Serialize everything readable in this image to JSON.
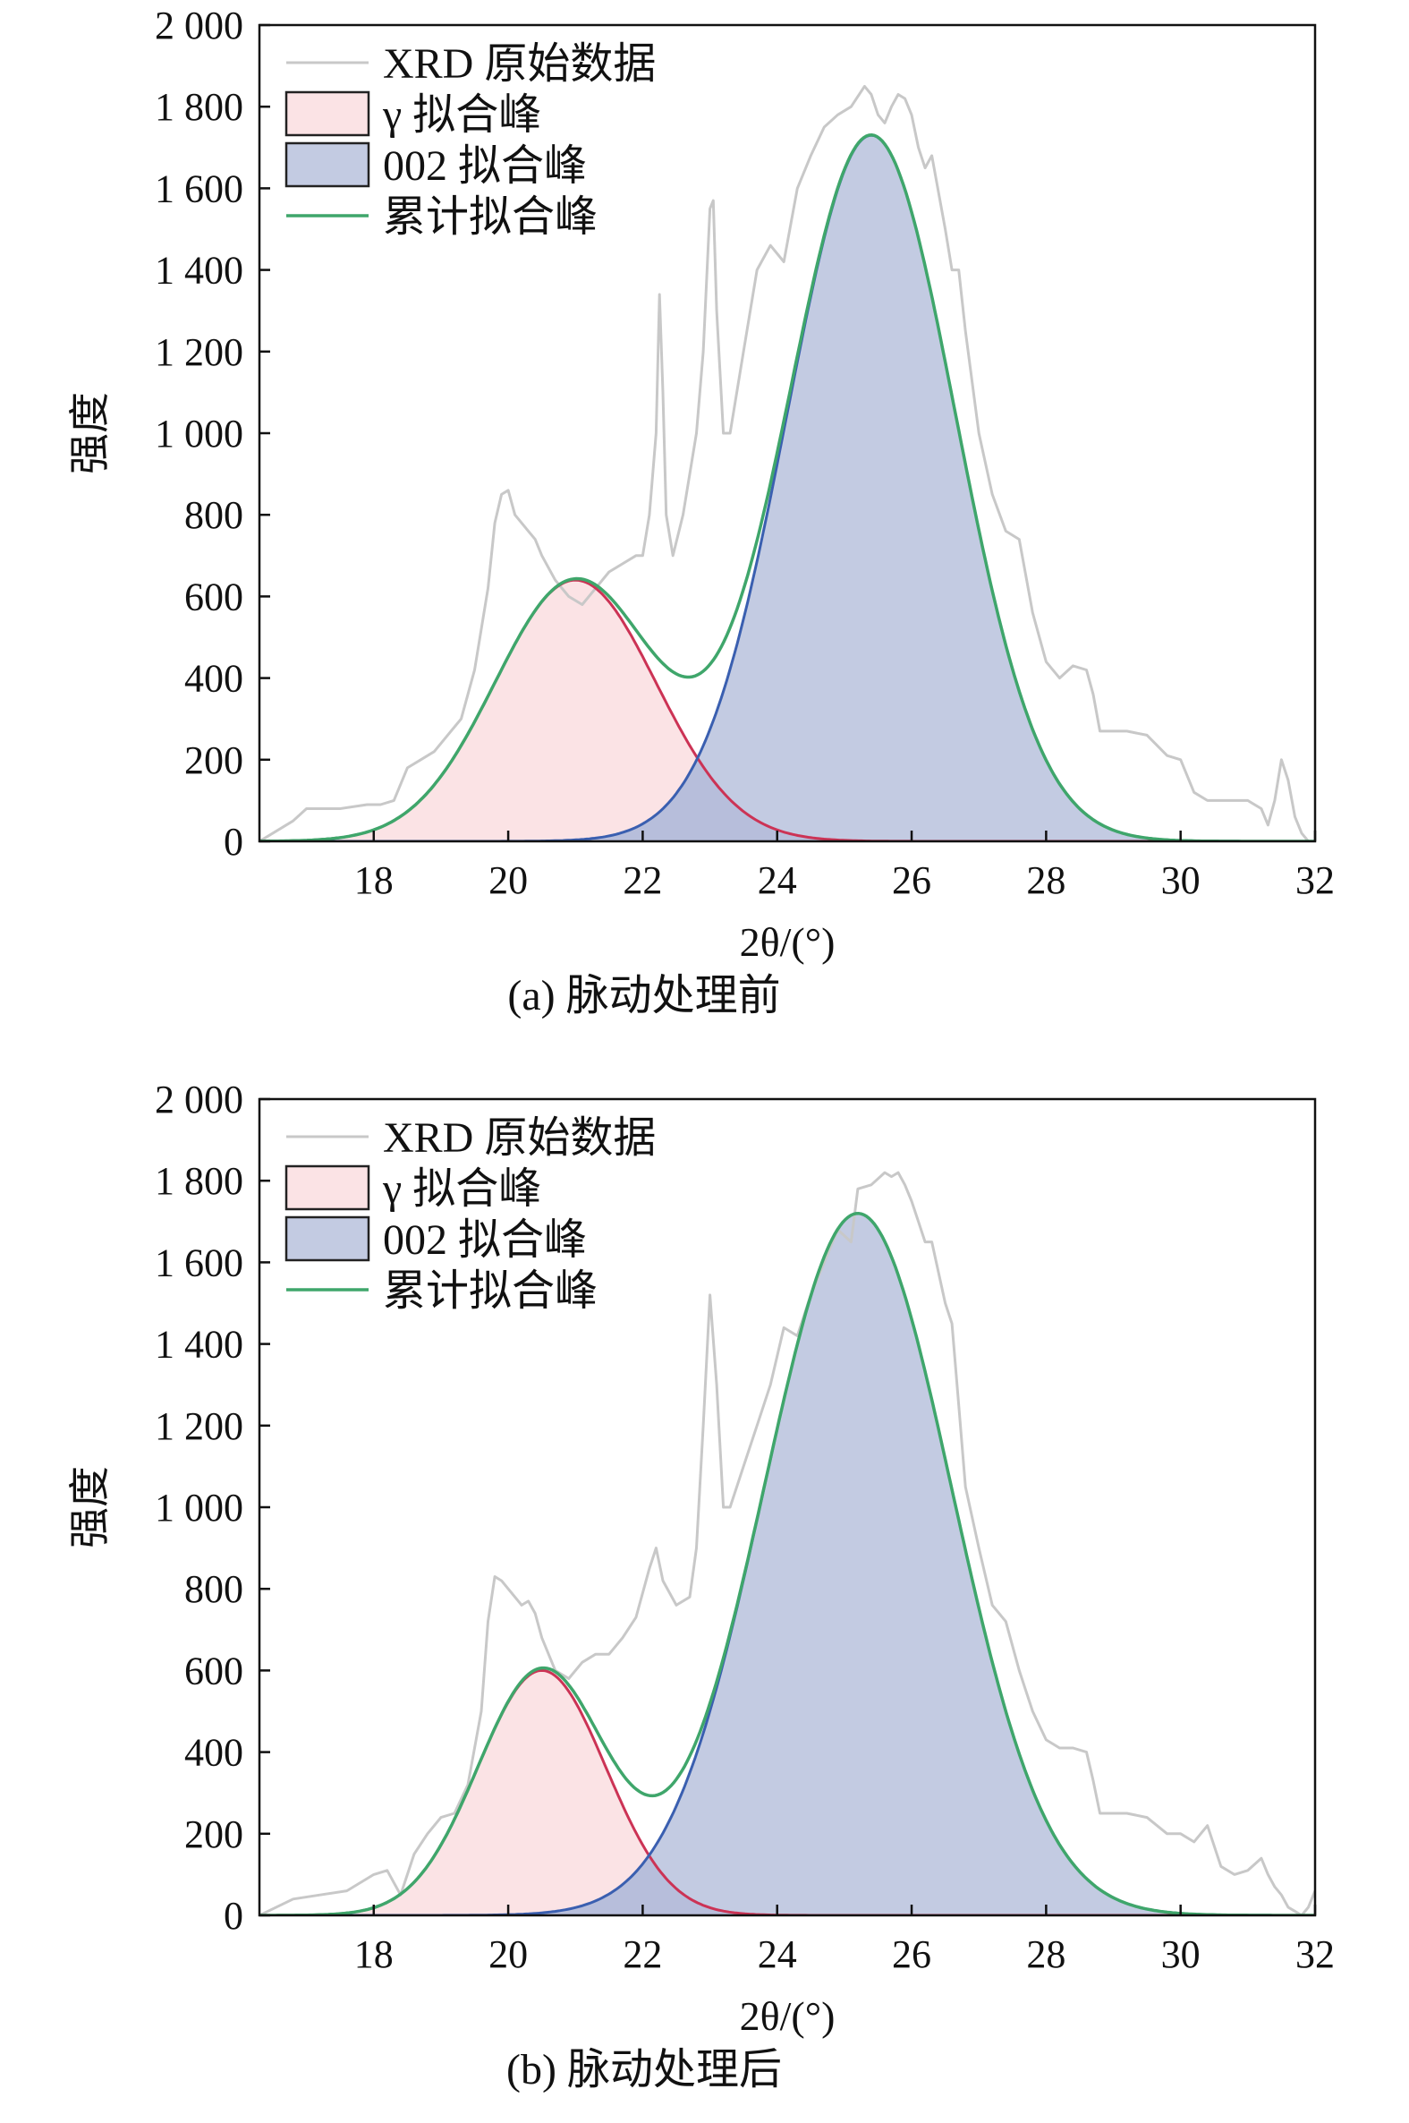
{
  "chart_data": [
    {
      "type": "area",
      "caption": "(a) 脉动处理前",
      "xlabel": "2θ/(°)",
      "ylabel": "强度",
      "xlim": [
        16.3,
        32
      ],
      "ylim": [
        0,
        2000
      ],
      "x_ticks": [
        18,
        20,
        22,
        24,
        26,
        28,
        30,
        32
      ],
      "y_ticks": [
        0,
        200,
        400,
        600,
        800,
        1000,
        1200,
        1400,
        1600,
        1800,
        2000
      ],
      "y_tick_labels": [
        "0",
        "200",
        "400",
        "600",
        "800",
        "1 000",
        "1 200",
        "1 400",
        "1 600",
        "1 800",
        "2 000"
      ],
      "legend": [
        "XRD 原始数据",
        "γ 拟合峰",
        "002 拟合峰",
        "累计拟合峰"
      ],
      "legend_position": "top-left",
      "colors": {
        "raw": "#c8c8c8",
        "gamma_line": "#cc3355",
        "gamma_fill": "#fbe3e5",
        "p002_line": "#3a5fb0",
        "p002_fill": "#c3cbe2",
        "overlap_fill": "#b7bedb",
        "sum": "#3fa66b"
      },
      "series": [
        {
          "name": "XRD 原始数据",
          "kind": "line",
          "x": [
            16.3,
            16.8,
            17.0,
            17.5,
            17.9,
            18.1,
            18.3,
            18.5,
            18.7,
            18.9,
            19.1,
            19.3,
            19.5,
            19.7,
            19.8,
            19.9,
            20.0,
            20.1,
            20.2,
            20.3,
            20.4,
            20.5,
            20.7,
            20.9,
            21.1,
            21.3,
            21.5,
            21.7,
            21.9,
            22.0,
            22.1,
            22.2,
            22.25,
            22.3,
            22.35,
            22.45,
            22.6,
            22.8,
            22.9,
            23.0,
            23.05,
            23.1,
            23.2,
            23.3,
            23.5,
            23.7,
            23.9,
            24.1,
            24.3,
            24.5,
            24.7,
            24.9,
            25.1,
            25.3,
            25.4,
            25.5,
            25.6,
            25.7,
            25.8,
            25.9,
            26.0,
            26.1,
            26.2,
            26.3,
            26.5,
            26.6,
            26.7,
            26.8,
            27.0,
            27.2,
            27.4,
            27.6,
            27.8,
            28.0,
            28.2,
            28.4,
            28.6,
            28.7,
            28.8,
            28.9,
            29.0,
            29.2,
            29.5,
            29.8,
            30.0,
            30.2,
            30.4,
            30.6,
            30.8,
            31.0,
            31.2,
            31.3,
            31.4,
            31.5,
            31.6,
            31.7,
            31.8,
            31.9
          ],
          "y": [
            0,
            50,
            80,
            80,
            90,
            90,
            100,
            180,
            200,
            220,
            260,
            300,
            420,
            620,
            780,
            850,
            860,
            800,
            780,
            760,
            740,
            700,
            640,
            600,
            580,
            620,
            660,
            680,
            700,
            700,
            800,
            1000,
            1340,
            1100,
            800,
            700,
            800,
            1000,
            1200,
            1550,
            1570,
            1300,
            1000,
            1000,
            1200,
            1400,
            1460,
            1420,
            1600,
            1680,
            1750,
            1780,
            1800,
            1850,
            1830,
            1780,
            1760,
            1800,
            1830,
            1820,
            1780,
            1700,
            1650,
            1680,
            1500,
            1400,
            1400,
            1250,
            1000,
            850,
            760,
            740,
            560,
            440,
            400,
            430,
            420,
            360,
            270,
            270,
            270,
            270,
            260,
            210,
            200,
            120,
            100,
            100,
            100,
            100,
            80,
            40,
            100,
            200,
            150,
            60,
            20,
            0
          ]
        },
        {
          "name": "γ 拟合峰",
          "kind": "gaussian",
          "center": 21.0,
          "amplitude": 640,
          "sigma": 1.2
        },
        {
          "name": "002 拟合峰",
          "kind": "gaussian",
          "center": 25.4,
          "amplitude": 1730,
          "sigma": 1.25
        },
        {
          "name": "累计拟合峰",
          "kind": "sum"
        }
      ]
    },
    {
      "type": "area",
      "caption": "(b) 脉动处理后",
      "xlabel": "2θ/(°)",
      "ylabel": "强度",
      "xlim": [
        16.3,
        32
      ],
      "ylim": [
        0,
        2000
      ],
      "x_ticks": [
        18,
        20,
        22,
        24,
        26,
        28,
        30,
        32
      ],
      "y_ticks": [
        0,
        200,
        400,
        600,
        800,
        1000,
        1200,
        1400,
        1600,
        1800,
        2000
      ],
      "y_tick_labels": [
        "0",
        "200",
        "400",
        "600",
        "800",
        "1 000",
        "1 200",
        "1 400",
        "1 600",
        "1 800",
        "2 000"
      ],
      "legend": [
        "XRD 原始数据",
        "γ 拟合峰",
        "002 拟合峰",
        "累计拟合峰"
      ],
      "legend_position": "top-left",
      "colors": {
        "raw": "#c8c8c8",
        "gamma_line": "#cc3355",
        "gamma_fill": "#fbe3e5",
        "p002_line": "#3a5fb0",
        "p002_fill": "#c3cbe2",
        "overlap_fill": "#b7bedb",
        "sum": "#3fa66b"
      },
      "series": [
        {
          "name": "XRD 原始数据",
          "kind": "line",
          "x": [
            16.3,
            16.8,
            17.2,
            17.6,
            18.0,
            18.2,
            18.4,
            18.6,
            18.8,
            19.0,
            19.2,
            19.4,
            19.6,
            19.7,
            19.8,
            19.9,
            20.0,
            20.1,
            20.2,
            20.3,
            20.4,
            20.5,
            20.7,
            20.9,
            21.1,
            21.3,
            21.5,
            21.7,
            21.9,
            22.1,
            22.2,
            22.3,
            22.5,
            22.7,
            22.8,
            22.9,
            23.0,
            23.1,
            23.2,
            23.3,
            23.5,
            23.7,
            23.9,
            24.1,
            24.3,
            24.5,
            24.7,
            24.9,
            25.1,
            25.2,
            25.4,
            25.6,
            25.7,
            25.8,
            25.9,
            26.0,
            26.1,
            26.2,
            26.3,
            26.5,
            26.6,
            26.7,
            26.8,
            27.0,
            27.2,
            27.4,
            27.6,
            27.8,
            28.0,
            28.2,
            28.4,
            28.6,
            28.7,
            28.8,
            28.9,
            29.0,
            29.2,
            29.5,
            29.8,
            30.0,
            30.2,
            30.4,
            30.6,
            30.8,
            31.0,
            31.2,
            31.3,
            31.4,
            31.5,
            31.6,
            31.7,
            31.8,
            31.9,
            32.0
          ],
          "y": [
            0,
            40,
            50,
            60,
            100,
            110,
            50,
            150,
            200,
            240,
            250,
            320,
            500,
            720,
            830,
            820,
            800,
            780,
            760,
            770,
            740,
            680,
            600,
            580,
            620,
            640,
            640,
            680,
            730,
            850,
            900,
            820,
            760,
            780,
            900,
            1200,
            1520,
            1300,
            1000,
            1000,
            1100,
            1200,
            1300,
            1440,
            1420,
            1520,
            1600,
            1680,
            1650,
            1780,
            1790,
            1820,
            1810,
            1820,
            1790,
            1750,
            1700,
            1650,
            1650,
            1500,
            1450,
            1250,
            1050,
            900,
            760,
            720,
            600,
            500,
            430,
            410,
            410,
            400,
            330,
            250,
            250,
            250,
            250,
            240,
            200,
            200,
            180,
            220,
            120,
            100,
            110,
            140,
            100,
            70,
            50,
            20,
            10,
            0,
            20,
            60
          ]
        },
        {
          "name": "γ 拟合峰",
          "kind": "gaussian",
          "center": 20.5,
          "amplitude": 600,
          "sigma": 0.95
        },
        {
          "name": "002 拟合峰",
          "kind": "gaussian",
          "center": 25.2,
          "amplitude": 1720,
          "sigma": 1.4
        },
        {
          "name": "累计拟合峰",
          "kind": "sum"
        }
      ]
    }
  ]
}
